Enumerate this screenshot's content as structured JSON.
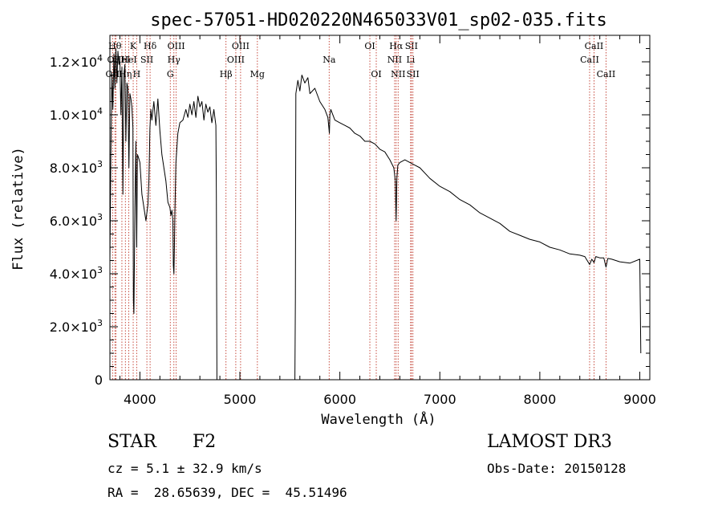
{
  "chart_data": {
    "type": "line",
    "title": "spec-57051-HD020220N465033V01_sp02-035.fits",
    "xlabel": "Wavelength (Å)",
    "ylabel": "Flux (relative)",
    "xlim": [
      3700,
      9100
    ],
    "ylim": [
      0,
      13000
    ],
    "x_ticks": [
      {
        "value": 4000,
        "label": "4000"
      },
      {
        "value": 5000,
        "label": "5000"
      },
      {
        "value": 6000,
        "label": "6000"
      },
      {
        "value": 7000,
        "label": "7000"
      },
      {
        "value": 8000,
        "label": "8000"
      },
      {
        "value": 9000,
        "label": "9000"
      }
    ],
    "y_ticks": [
      {
        "value": 0,
        "mant": "0",
        "exp": ""
      },
      {
        "value": 2000,
        "mant": "2.0×10",
        "exp": "3"
      },
      {
        "value": 4000,
        "mant": "4.0×10",
        "exp": "3"
      },
      {
        "value": 6000,
        "mant": "6.0×10",
        "exp": "3"
      },
      {
        "value": 8000,
        "mant": "8.0×10",
        "exp": "3"
      },
      {
        "value": 10000,
        "mant": "1.0×10",
        "exp": "4"
      },
      {
        "value": 12000,
        "mant": "1.2×10",
        "exp": "4"
      }
    ],
    "series": [
      {
        "name": "spectrum",
        "x": [
          3700,
          3710,
          3720,
          3730,
          3740,
          3750,
          3760,
          3770,
          3780,
          3790,
          3800,
          3810,
          3820,
          3830,
          3840,
          3850,
          3860,
          3870,
          3880,
          3890,
          3900,
          3910,
          3920,
          3930,
          3935,
          3940,
          3950,
          3960,
          3968,
          3975,
          3985,
          4000,
          4020,
          4040,
          4060,
          4070,
          4080,
          4090,
          4100,
          4110,
          4120,
          4140,
          4160,
          4180,
          4200,
          4220,
          4240,
          4260,
          4280,
          4300,
          4310,
          4320,
          4330,
          4335,
          4340,
          4345,
          4350,
          4360,
          4380,
          4400,
          4430,
          4460,
          4480,
          4500,
          4520,
          4540,
          4560,
          4580,
          4600,
          4620,
          4640,
          4660,
          4680,
          4700,
          4720,
          4740,
          4760,
          4765,
          4770,
          5550,
          5555,
          5560,
          5580,
          5600,
          5620,
          5650,
          5680,
          5700,
          5750,
          5800,
          5850,
          5880,
          5895,
          5900,
          5910,
          5950,
          6000,
          6050,
          6100,
          6150,
          6200,
          6250,
          6300,
          6350,
          6400,
          6450,
          6500,
          6540,
          6555,
          6563,
          6570,
          6580,
          6600,
          6650,
          6700,
          6750,
          6800,
          6900,
          7000,
          7100,
          7200,
          7300,
          7400,
          7500,
          7600,
          7700,
          7800,
          7900,
          8000,
          8100,
          8200,
          8300,
          8400,
          8450,
          8498,
          8520,
          8542,
          8560,
          8600,
          8640,
          8662,
          8680,
          8720,
          8760,
          8800,
          8900,
          9000,
          9010
        ],
        "y": [
          4500,
          8500,
          11500,
          10200,
          12300,
          11000,
          12500,
          11200,
          12400,
          11900,
          12000,
          10000,
          11800,
          7000,
          11500,
          11900,
          9000,
          11200,
          11000,
          8000,
          10800,
          10600,
          10300,
          9500,
          3000,
          2500,
          6500,
          9000,
          5000,
          8500,
          8400,
          8200,
          7000,
          6500,
          6000,
          6300,
          6600,
          7500,
          9500,
          10200,
          9800,
          10500,
          9600,
          10600,
          9400,
          8500,
          8000,
          7500,
          6700,
          6500,
          6200,
          6400,
          6000,
          4300,
          4000,
          5000,
          6300,
          8200,
          9300,
          9700,
          9800,
          10200,
          9900,
          10400,
          10000,
          10500,
          9900,
          10700,
          10300,
          10500,
          9800,
          10400,
          10100,
          10300,
          9700,
          10200,
          9600,
          7000,
          0,
          0,
          3000,
          10800,
          11300,
          10900,
          11500,
          11200,
          11400,
          10800,
          11000,
          10500,
          10200,
          9900,
          9300,
          10000,
          10200,
          9800,
          9700,
          9600,
          9500,
          9300,
          9200,
          9000,
          9000,
          8900,
          8700,
          8600,
          8300,
          8000,
          7500,
          6000,
          7600,
          8100,
          8200,
          8300,
          8200,
          8100,
          8000,
          7600,
          7300,
          7100,
          6800,
          6600,
          6300,
          6100,
          5900,
          5600,
          5450,
          5300,
          5200,
          5000,
          4900,
          4750,
          4700,
          4650,
          4350,
          4550,
          4420,
          4650,
          4600,
          4600,
          4250,
          4580,
          4550,
          4500,
          4450,
          4400,
          4550,
          1000
        ]
      }
    ],
    "lines": [
      {
        "x": 3727,
        "label": "OII",
        "row": 2
      },
      {
        "x": 3750,
        "label": "Hθ",
        "row": 0
      },
      {
        "x": 3760,
        "label": "OIII",
        "row": 1
      },
      {
        "x": 3820,
        "label": "HeI",
        "row": 1
      },
      {
        "x": 3855,
        "label": "Hη",
        "row": 2
      },
      {
        "x": 3889,
        "label": "HeI",
        "row": 1
      },
      {
        "x": 3933,
        "label": "K",
        "row": 0
      },
      {
        "x": 3968,
        "label": "H",
        "row": 2
      },
      {
        "x": 4070,
        "label": "SII",
        "row": 1
      },
      {
        "x": 4102,
        "label": "Hδ",
        "row": 0
      },
      {
        "x": 4304,
        "label": "G",
        "row": 2
      },
      {
        "x": 4340,
        "label": "Hγ",
        "row": 1
      },
      {
        "x": 4363,
        "label": "OIII",
        "row": 0
      },
      {
        "x": 4861,
        "label": "Hβ",
        "row": 2
      },
      {
        "x": 4959,
        "label": "OIII",
        "row": 1
      },
      {
        "x": 5007,
        "label": "OIII",
        "row": 0
      },
      {
        "x": 5175,
        "label": "Mg",
        "row": 2
      },
      {
        "x": 5893,
        "label": "Na",
        "row": 1
      },
      {
        "x": 6300,
        "label": "OI",
        "row": 0
      },
      {
        "x": 6364,
        "label": "OI",
        "row": 2
      },
      {
        "x": 6548,
        "label": "NII",
        "row": 1
      },
      {
        "x": 6563,
        "label": "Hα",
        "row": 0
      },
      {
        "x": 6583,
        "label": "NII",
        "row": 2
      },
      {
        "x": 6708,
        "label": "Li",
        "row": 1
      },
      {
        "x": 6716,
        "label": "SII",
        "row": 0
      },
      {
        "x": 6731,
        "label": "SII",
        "row": 2
      },
      {
        "x": 8498,
        "label": "CaII",
        "row": 1
      },
      {
        "x": 8542,
        "label": "CaII",
        "row": 0
      },
      {
        "x": 8662,
        "label": "CaII",
        "row": 2
      }
    ]
  },
  "info": {
    "object_type": "STAR",
    "subclass": "F2",
    "redshift_text": "cz = 5.1 ± 32.9 km/s",
    "coords_text": "RA =  28.65639, DEC =  45.51496",
    "survey": "LAMOST DR3",
    "obs_date": "Obs-Date: 20150128"
  }
}
